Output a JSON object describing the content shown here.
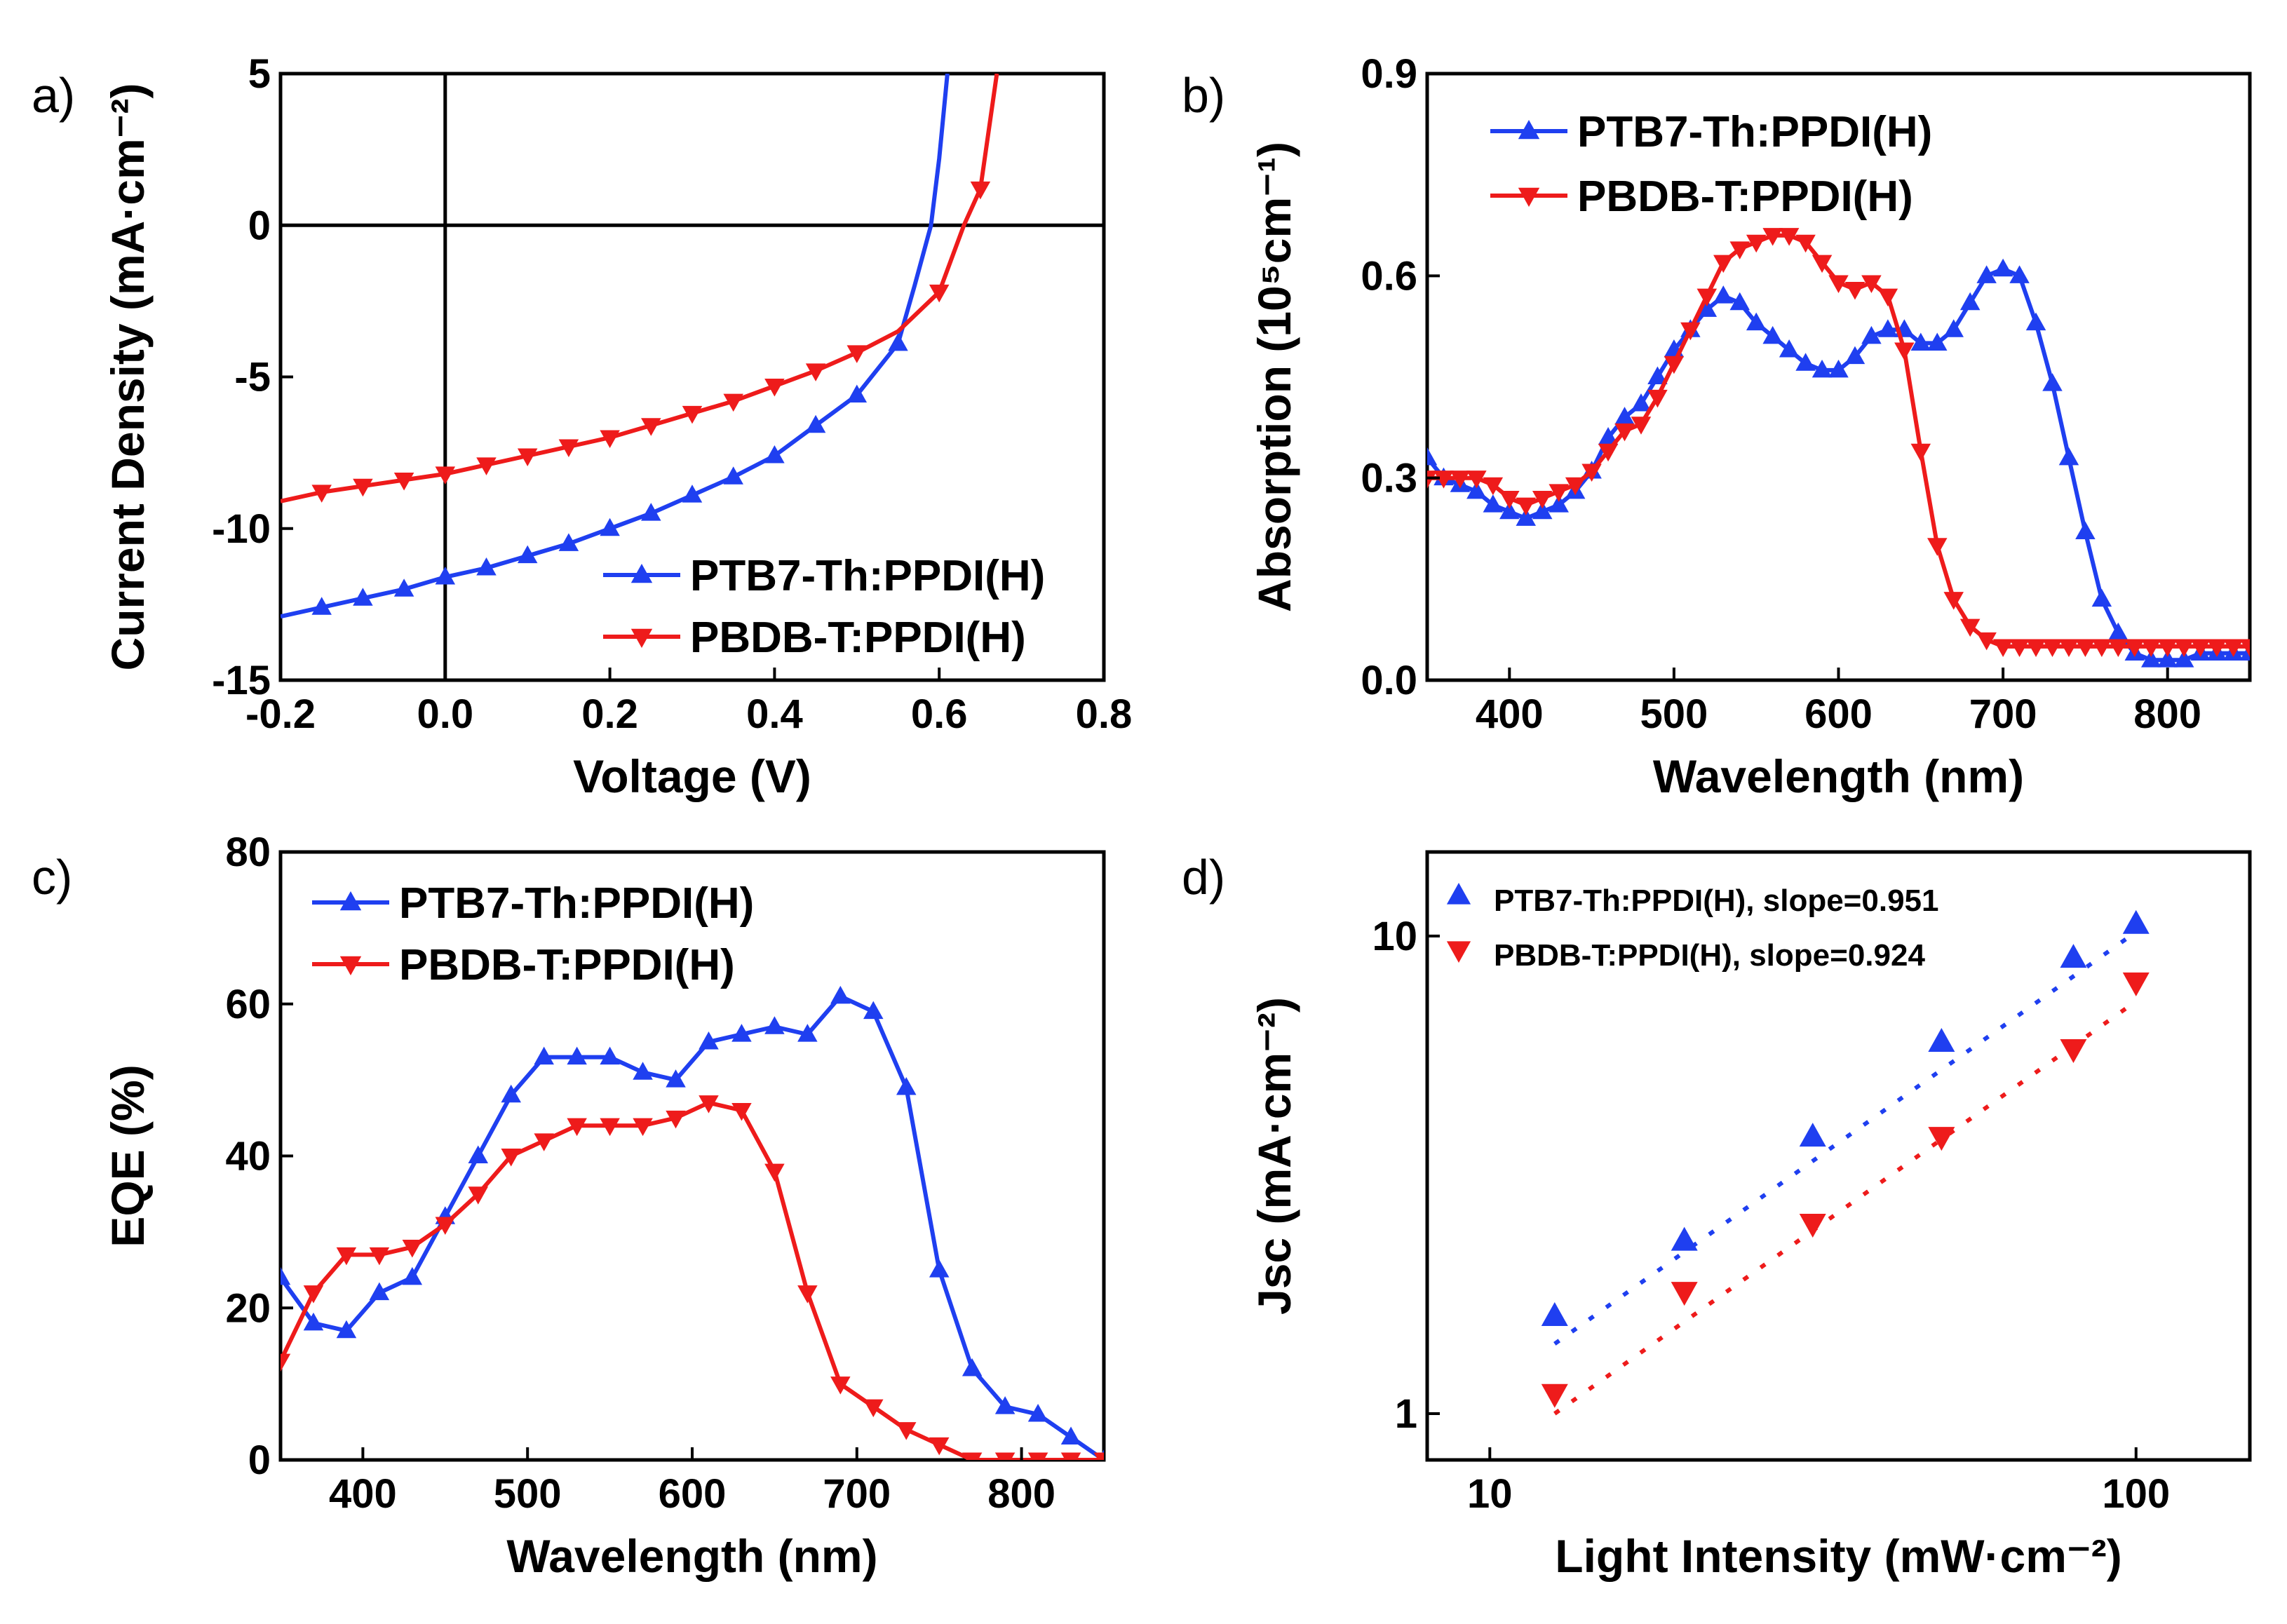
{
  "colors": {
    "blue": "#1f3ff0",
    "red": "#ee1b1b",
    "axis": "#000000"
  },
  "chart_data": [
    {
      "panel": "a)",
      "type": "line",
      "title": "",
      "xlabel": "Voltage (V)",
      "ylabel": "Current Density (mA·cm⁻²)",
      "xlim": [
        -0.2,
        0.8
      ],
      "ylim": [
        -15,
        5
      ],
      "xticks": [
        -0.2,
        0.0,
        0.2,
        0.4,
        0.6,
        0.8
      ],
      "xtick_labels": [
        "-0.2",
        "0.0",
        "0.2",
        "0.4",
        "0.6",
        "0.8"
      ],
      "yticks": [
        -15,
        -10,
        -5,
        0,
        5
      ],
      "ytick_labels": [
        "-15",
        "-10",
        "-5",
        "0",
        "5"
      ],
      "zero_lines": true,
      "legend_position": "lower-right",
      "series": [
        {
          "name": "PTB7-Th:PPDI(H)",
          "color_key": "blue",
          "marker": "up",
          "x": [
            -0.2,
            -0.15,
            -0.1,
            -0.05,
            0.0,
            0.05,
            0.1,
            0.15,
            0.2,
            0.25,
            0.3,
            0.35,
            0.4,
            0.45,
            0.5,
            0.55,
            0.57,
            0.59,
            0.6,
            0.61
          ],
          "y": [
            -12.9,
            -12.6,
            -12.3,
            -12.0,
            -11.6,
            -11.3,
            -10.9,
            -10.5,
            -10.0,
            -9.5,
            -8.9,
            -8.3,
            -7.6,
            -6.6,
            -5.6,
            -3.9,
            -2.0,
            0.0,
            2.2,
            5.0
          ],
          "marker_x": [
            -0.15,
            -0.1,
            -0.05,
            0.0,
            0.05,
            0.1,
            0.15,
            0.2,
            0.25,
            0.3,
            0.35,
            0.4,
            0.45,
            0.5,
            0.55
          ]
        },
        {
          "name": "PBDB-T:PPDI(H)",
          "color_key": "red",
          "marker": "down",
          "x": [
            -0.2,
            -0.15,
            -0.1,
            -0.05,
            0.0,
            0.05,
            0.1,
            0.15,
            0.2,
            0.25,
            0.3,
            0.35,
            0.4,
            0.45,
            0.5,
            0.55,
            0.6,
            0.63,
            0.65,
            0.67
          ],
          "y": [
            -9.1,
            -8.8,
            -8.6,
            -8.4,
            -8.2,
            -7.9,
            -7.6,
            -7.3,
            -7.0,
            -6.6,
            -6.2,
            -5.8,
            -5.3,
            -4.8,
            -4.2,
            -3.5,
            -2.2,
            0.0,
            1.2,
            5.0
          ],
          "marker_x": [
            -0.15,
            -0.1,
            -0.05,
            0.0,
            0.05,
            0.1,
            0.15,
            0.2,
            0.25,
            0.3,
            0.35,
            0.4,
            0.45,
            0.5,
            0.6,
            0.65
          ]
        }
      ]
    },
    {
      "panel": "b)",
      "type": "line",
      "title": "",
      "xlabel": "Wavelength (nm)",
      "ylabel": "Absorption (10⁵cm⁻¹)",
      "xlim": [
        350,
        850
      ],
      "ylim": [
        0,
        0.9
      ],
      "xticks": [
        400,
        500,
        600,
        700,
        800
      ],
      "xtick_labels": [
        "400",
        "500",
        "600",
        "700",
        "800"
      ],
      "yticks": [
        0,
        0.3,
        0.6,
        0.9
      ],
      "ytick_labels": [
        "0.0",
        "0.3",
        "0.6",
        "0.9"
      ],
      "legend_position": "top-left",
      "series": [
        {
          "name": "PTB7-Th:PPDI(H)",
          "color_key": "blue",
          "marker": "up",
          "x": [
            350,
            360,
            370,
            380,
            390,
            400,
            410,
            420,
            430,
            440,
            450,
            460,
            470,
            480,
            490,
            500,
            510,
            520,
            530,
            540,
            550,
            560,
            570,
            580,
            590,
            600,
            610,
            620,
            630,
            640,
            650,
            660,
            670,
            680,
            690,
            700,
            710,
            720,
            730,
            740,
            750,
            760,
            770,
            780,
            790,
            800,
            810,
            820,
            830,
            840,
            850
          ],
          "y": [
            0.33,
            0.3,
            0.29,
            0.28,
            0.26,
            0.25,
            0.24,
            0.25,
            0.26,
            0.28,
            0.31,
            0.36,
            0.39,
            0.41,
            0.45,
            0.49,
            0.52,
            0.55,
            0.57,
            0.56,
            0.53,
            0.51,
            0.49,
            0.47,
            0.46,
            0.46,
            0.48,
            0.51,
            0.52,
            0.52,
            0.5,
            0.5,
            0.52,
            0.56,
            0.6,
            0.61,
            0.6,
            0.53,
            0.44,
            0.33,
            0.22,
            0.12,
            0.07,
            0.04,
            0.03,
            0.03,
            0.03,
            0.04,
            0.04,
            0.04,
            0.04
          ]
        },
        {
          "name": "PBDB-T:PPDI(H)",
          "color_key": "red",
          "marker": "down",
          "x": [
            350,
            360,
            370,
            380,
            390,
            400,
            410,
            420,
            430,
            440,
            450,
            460,
            470,
            480,
            490,
            500,
            510,
            520,
            530,
            540,
            550,
            560,
            570,
            580,
            590,
            600,
            610,
            620,
            630,
            640,
            650,
            660,
            670,
            680,
            690,
            700,
            710,
            720,
            730,
            740,
            750,
            760,
            770,
            780,
            790,
            800,
            810,
            820,
            830,
            840,
            850
          ],
          "y": [
            0.3,
            0.3,
            0.3,
            0.3,
            0.29,
            0.27,
            0.26,
            0.27,
            0.28,
            0.29,
            0.31,
            0.34,
            0.37,
            0.38,
            0.42,
            0.47,
            0.52,
            0.57,
            0.62,
            0.64,
            0.65,
            0.66,
            0.66,
            0.65,
            0.62,
            0.59,
            0.58,
            0.59,
            0.57,
            0.49,
            0.34,
            0.2,
            0.12,
            0.08,
            0.06,
            0.05,
            0.05,
            0.05,
            0.05,
            0.05,
            0.05,
            0.05,
            0.05,
            0.05,
            0.05,
            0.05,
            0.05,
            0.05,
            0.05,
            0.05,
            0.05
          ]
        }
      ]
    },
    {
      "panel": "c)",
      "type": "line",
      "title": "",
      "xlabel": "Wavelength (nm)",
      "ylabel": "EQE (%)",
      "xlim": [
        350,
        850
      ],
      "ylim": [
        0,
        80
      ],
      "xticks": [
        400,
        500,
        600,
        700,
        800
      ],
      "xtick_labels": [
        "400",
        "500",
        "600",
        "700",
        "800"
      ],
      "yticks": [
        0,
        20,
        40,
        60,
        80
      ],
      "ytick_labels": [
        "0",
        "20",
        "40",
        "60",
        "80"
      ],
      "legend_position": "top-left",
      "series": [
        {
          "name": "PTB7-Th:PPDI(H)",
          "color_key": "blue",
          "marker": "up",
          "x": [
            350,
            370,
            390,
            410,
            430,
            450,
            470,
            490,
            510,
            530,
            550,
            570,
            590,
            610,
            630,
            650,
            670,
            690,
            710,
            730,
            750,
            770,
            790,
            810,
            830,
            850
          ],
          "y": [
            24,
            18,
            17,
            22,
            24,
            32,
            40,
            48,
            53,
            53,
            53,
            51,
            50,
            55,
            56,
            57,
            56,
            61,
            59,
            49,
            25,
            12,
            7,
            6,
            3,
            0
          ]
        },
        {
          "name": "PBDB-T:PPDI(H)",
          "color_key": "red",
          "marker": "down",
          "x": [
            350,
            370,
            390,
            410,
            430,
            450,
            470,
            490,
            510,
            530,
            550,
            570,
            590,
            610,
            630,
            650,
            670,
            690,
            710,
            730,
            750,
            770,
            790,
            810,
            830,
            850
          ],
          "y": [
            13,
            22,
            27,
            27,
            28,
            31,
            35,
            40,
            42,
            44,
            44,
            44,
            45,
            47,
            46,
            38,
            22,
            10,
            7,
            4,
            2,
            0,
            0,
            0,
            0,
            0
          ]
        }
      ]
    },
    {
      "panel": "d)",
      "type": "scatter",
      "title": "",
      "xlabel": "Light Intensity (mW·cm⁻²)",
      "ylabel": "Jsc (mA·cm⁻²)",
      "xscale": "log",
      "yscale": "log",
      "xlim": [
        8,
        150
      ],
      "ylim": [
        0.8,
        15
      ],
      "xticks": [
        10,
        100
      ],
      "xtick_labels": [
        "10",
        "100"
      ],
      "yticks": [
        1,
        10
      ],
      "ytick_labels": [
        "1",
        "10"
      ],
      "legend_position": "top-left",
      "series": [
        {
          "name": "PTB7-Th:PPDI(H), slope=0.951",
          "color_key": "blue",
          "marker": "up",
          "x": [
            12.6,
            20,
            31.6,
            50,
            80,
            100
          ],
          "y": [
            1.6,
            2.3,
            3.8,
            6.0,
            9.0,
            10.6
          ],
          "fit_x": [
            12.6,
            100
          ],
          "fit_y": [
            1.4,
            10.2
          ]
        },
        {
          "name": "PBDB-T:PPDI(H), slope=0.924",
          "color_key": "red",
          "marker": "down",
          "x": [
            12.6,
            20,
            31.6,
            50,
            80,
            100
          ],
          "y": [
            1.1,
            1.8,
            2.5,
            3.8,
            5.8,
            8.0
          ],
          "fit_x": [
            12.6,
            100
          ],
          "fit_y": [
            1.0,
            7.3
          ]
        }
      ]
    }
  ]
}
